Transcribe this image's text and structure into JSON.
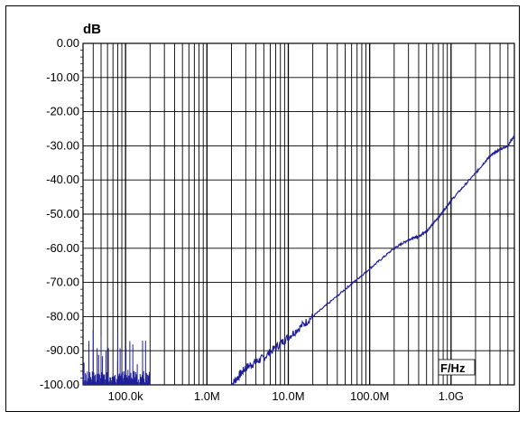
{
  "chart_data": {
    "type": "line",
    "title": "",
    "ylabel": "dB",
    "xlabel": "F/Hz",
    "x_scale": "log",
    "xlim": [
      30000,
      6000000000
    ],
    "ylim": [
      -100,
      0
    ],
    "grid": true,
    "y_ticks": [
      "0.00",
      "-10.00",
      "-20.00",
      "-30.00",
      "-40.00",
      "-50.00",
      "-60.00",
      "-70.00",
      "-80.00",
      "-90.00",
      "-100.00"
    ],
    "x_ticks": [
      {
        "value": 100000,
        "label": "100.0k"
      },
      {
        "value": 1000000,
        "label": "1.0M"
      },
      {
        "value": 10000000,
        "label": "10.0M"
      },
      {
        "value": 100000000,
        "label": "100.0M"
      },
      {
        "value": 1000000000,
        "label": "1.0G"
      }
    ],
    "series": [
      {
        "color": "#1f1f9a",
        "x": [
          2000000,
          3000000,
          5000000,
          10000000,
          20000000,
          50000000,
          100000000,
          200000000,
          300000000,
          400000000,
          500000000,
          700000000,
          1000000000,
          2000000000,
          3000000000,
          4000000000,
          5000000000,
          6000000000
        ],
        "y": [
          -100,
          -95,
          -92,
          -86,
          -80,
          -72,
          -66,
          -60,
          -57.5,
          -56.5,
          -55,
          -51,
          -46,
          -38,
          -33,
          -31,
          -30,
          -27
        ]
      }
    ]
  },
  "colors": {
    "trace": "#1f1f9a",
    "grid": "#000000",
    "background": "#ffffff"
  }
}
